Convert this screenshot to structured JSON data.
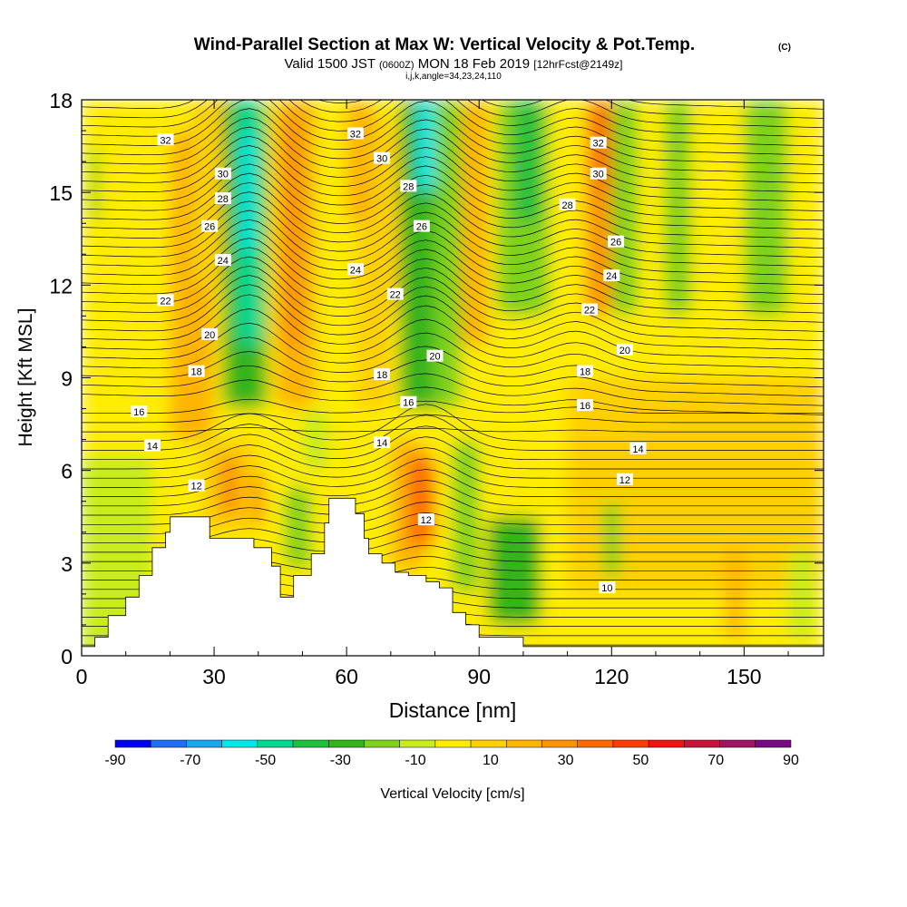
{
  "chart_data": {
    "type": "heatmap",
    "title": "Wind-Parallel Section at Max W: Vertical Velocity & Pot.Temp.",
    "title_mark": "(C)",
    "subtitle_parts": [
      "Valid 1500 JST ",
      "(0600Z)",
      " MON 18 Feb 2019 ",
      "[12hrFcst@2149z]"
    ],
    "subtitle2": "i,j,k,angle=34,23,24,110",
    "xlabel": "Distance [nm]",
    "ylabel": "Height [Kft MSL]",
    "xlim": [
      0,
      168
    ],
    "ylim": [
      0,
      18
    ],
    "x_ticks": [
      0,
      30,
      60,
      90,
      120,
      150
    ],
    "y_ticks": [
      0,
      3,
      6,
      9,
      12,
      15,
      18
    ],
    "colorbar": {
      "label": "Vertical Velocity [cm/s]",
      "range": [
        -90,
        90
      ],
      "tick_labels": [
        "-90",
        "-70",
        "-50",
        "-30",
        "-10",
        "10",
        "30",
        "50",
        "70",
        "90"
      ],
      "colors": [
        "#0000f0",
        "#1e6ff5",
        "#1aa6ef",
        "#00e8e8",
        "#00d890",
        "#1cc03c",
        "#34b41c",
        "#7fd21e",
        "#c8ec1e",
        "#ffec00",
        "#ffd000",
        "#ffb400",
        "#ff9400",
        "#ff6a00",
        "#ff3c00",
        "#f01414",
        "#c8143c",
        "#a01464",
        "#780a82"
      ]
    },
    "terrain": [
      [
        0,
        0.3
      ],
      [
        3,
        0.3
      ],
      [
        3,
        0.6
      ],
      [
        6,
        0.6
      ],
      [
        6,
        1.3
      ],
      [
        10,
        1.3
      ],
      [
        10,
        1.9
      ],
      [
        13,
        1.9
      ],
      [
        13,
        2.6
      ],
      [
        16,
        2.6
      ],
      [
        16,
        3.5
      ],
      [
        19,
        3.5
      ],
      [
        19,
        4.0
      ],
      [
        20,
        4.0
      ],
      [
        20,
        4.5
      ],
      [
        29,
        4.5
      ],
      [
        29,
        3.8
      ],
      [
        39,
        3.8
      ],
      [
        39,
        3.5
      ],
      [
        43,
        3.5
      ],
      [
        43,
        2.9
      ],
      [
        45,
        2.9
      ],
      [
        45,
        1.9
      ],
      [
        48,
        1.9
      ],
      [
        48,
        2.6
      ],
      [
        52,
        2.6
      ],
      [
        52,
        3.3
      ],
      [
        55,
        3.3
      ],
      [
        55,
        4.3
      ],
      [
        56,
        4.3
      ],
      [
        56,
        5.1
      ],
      [
        62,
        5.1
      ],
      [
        62,
        4.6
      ],
      [
        64,
        4.6
      ],
      [
        64,
        3.8
      ],
      [
        65,
        3.8
      ],
      [
        65,
        3.3
      ],
      [
        68,
        3.3
      ],
      [
        68,
        3.0
      ],
      [
        71,
        3.0
      ],
      [
        71,
        2.7
      ],
      [
        74,
        2.7
      ],
      [
        74,
        2.6
      ],
      [
        78,
        2.6
      ],
      [
        78,
        2.4
      ],
      [
        81,
        2.4
      ],
      [
        81,
        2.2
      ],
      [
        84,
        2.2
      ],
      [
        84,
        1.4
      ],
      [
        87,
        1.4
      ],
      [
        87,
        1.0
      ],
      [
        90,
        1.0
      ],
      [
        90,
        0.6
      ],
      [
        100,
        0.6
      ],
      [
        100,
        0.3
      ],
      [
        168,
        0.3
      ]
    ],
    "velocity_cells": [
      {
        "x": [
          0,
          168
        ],
        "y": [
          0,
          18
        ],
        "v": 0
      },
      {
        "x": [
          0,
          16
        ],
        "y": [
          0,
          6.5
        ],
        "v": -6
      },
      {
        "x": [
          0,
          20
        ],
        "y": [
          6.5,
          11
        ],
        "v": 3
      },
      {
        "x": [
          2,
          4
        ],
        "y": [
          14,
          16.5
        ],
        "v": -18
      },
      {
        "x": [
          20,
          30
        ],
        "y": [
          7,
          17
        ],
        "v": 15
      },
      {
        "x": [
          25,
          38
        ],
        "y": [
          12,
          18
        ],
        "v": 10
      },
      {
        "x": [
          32,
          42
        ],
        "y": [
          8,
          18
        ],
        "v": -32
      },
      {
        "x": [
          35,
          41
        ],
        "y": [
          10,
          18
        ],
        "v": -45
      },
      {
        "x": [
          36,
          39
        ],
        "y": [
          13,
          17
        ],
        "v": -60
      },
      {
        "x": [
          44,
          53
        ],
        "y": [
          8,
          18
        ],
        "v": 18
      },
      {
        "x": [
          45,
          50
        ],
        "y": [
          10,
          17.5
        ],
        "v": 28
      },
      {
        "x": [
          27,
          40
        ],
        "y": [
          4,
          7
        ],
        "v": 14
      },
      {
        "x": [
          39,
          41
        ],
        "y": [
          4.2,
          6
        ],
        "v": 36
      },
      {
        "x": [
          31,
          36
        ],
        "y": [
          4.5,
          6.5
        ],
        "v": 24
      },
      {
        "x": [
          46,
          52
        ],
        "y": [
          2.8,
          5.5
        ],
        "v": -22
      },
      {
        "x": [
          50,
          56
        ],
        "y": [
          6,
          8
        ],
        "v": -12
      },
      {
        "x": [
          62,
          70
        ],
        "y": [
          8,
          17.5
        ],
        "v": 10
      },
      {
        "x": [
          60,
          66
        ],
        "y": [
          14,
          18
        ],
        "v": 22
      },
      {
        "x": [
          66,
          72
        ],
        "y": [
          11,
          17
        ],
        "v": 14
      },
      {
        "x": [
          72,
          82
        ],
        "y": [
          8,
          18
        ],
        "v": -30
      },
      {
        "x": [
          76,
          80
        ],
        "y": [
          15,
          18
        ],
        "v": -55
      },
      {
        "x": [
          80,
          86
        ],
        "y": [
          8,
          18
        ],
        "v": -15
      },
      {
        "x": [
          86,
          92
        ],
        "y": [
          10,
          18
        ],
        "v": 15
      },
      {
        "x": [
          94,
          106
        ],
        "y": [
          11,
          18
        ],
        "v": -20
      },
      {
        "x": [
          98,
          104
        ],
        "y": [
          14,
          18
        ],
        "v": -34
      },
      {
        "x": [
          114,
          120
        ],
        "y": [
          11,
          18
        ],
        "v": 25
      },
      {
        "x": [
          116,
          120
        ],
        "y": [
          15,
          18
        ],
        "v": 42
      },
      {
        "x": [
          120,
          126
        ],
        "y": [
          11,
          18
        ],
        "v": -15
      },
      {
        "x": [
          132,
          138
        ],
        "y": [
          11,
          18
        ],
        "v": -15
      },
      {
        "x": [
          150,
          160
        ],
        "y": [
          11,
          18
        ],
        "v": -15
      },
      {
        "x": [
          110,
          168
        ],
        "y": [
          2,
          9
        ],
        "v": 6
      },
      {
        "x": [
          70,
          78
        ],
        "y": [
          2.8,
          7
        ],
        "v": 22
      },
      {
        "x": [
          74,
          80
        ],
        "y": [
          3.5,
          6.5
        ],
        "v": 38
      },
      {
        "x": [
          84,
          90
        ],
        "y": [
          2,
          7
        ],
        "v": -18
      },
      {
        "x": [
          92,
          104
        ],
        "y": [
          1,
          4.5
        ],
        "v": -25
      },
      {
        "x": [
          118,
          122
        ],
        "y": [
          2.5,
          5
        ],
        "v": -20
      },
      {
        "x": [
          146,
          150
        ],
        "y": [
          0.5,
          3.5
        ],
        "v": 15
      },
      {
        "x": [
          160,
          166
        ],
        "y": [
          0.5,
          3.5
        ],
        "v": -10
      }
    ],
    "theta_labels": [
      {
        "text": "32",
        "x": 19,
        "y": 16.7
      },
      {
        "text": "30",
        "x": 32,
        "y": 15.6
      },
      {
        "text": "28",
        "x": 32,
        "y": 14.8
      },
      {
        "text": "26",
        "x": 29,
        "y": 13.9
      },
      {
        "text": "24",
        "x": 32,
        "y": 12.8
      },
      {
        "text": "22",
        "x": 19,
        "y": 11.5
      },
      {
        "text": "20",
        "x": 29,
        "y": 10.4
      },
      {
        "text": "18",
        "x": 26,
        "y": 9.2
      },
      {
        "text": "16",
        "x": 13,
        "y": 7.9
      },
      {
        "text": "14",
        "x": 16,
        "y": 6.8
      },
      {
        "text": "12",
        "x": 26,
        "y": 5.5
      },
      {
        "text": "32",
        "x": 62,
        "y": 16.9
      },
      {
        "text": "30",
        "x": 68,
        "y": 16.1
      },
      {
        "text": "28",
        "x": 74,
        "y": 15.2
      },
      {
        "text": "26",
        "x": 77,
        "y": 13.9
      },
      {
        "text": "24",
        "x": 62,
        "y": 12.5
      },
      {
        "text": "22",
        "x": 71,
        "y": 11.7
      },
      {
        "text": "20",
        "x": 80,
        "y": 9.7
      },
      {
        "text": "18",
        "x": 68,
        "y": 9.1
      },
      {
        "text": "16",
        "x": 74,
        "y": 8.2
      },
      {
        "text": "14",
        "x": 68,
        "y": 6.9
      },
      {
        "text": "12",
        "x": 78,
        "y": 4.4
      },
      {
        "text": "32",
        "x": 117,
        "y": 16.6
      },
      {
        "text": "30",
        "x": 117,
        "y": 15.6
      },
      {
        "text": "28",
        "x": 110,
        "y": 14.6
      },
      {
        "text": "26",
        "x": 121,
        "y": 13.4
      },
      {
        "text": "24",
        "x": 120,
        "y": 12.3
      },
      {
        "text": "22",
        "x": 115,
        "y": 11.2
      },
      {
        "text": "20",
        "x": 123,
        "y": 9.9
      },
      {
        "text": "18",
        "x": 114,
        "y": 9.2
      },
      {
        "text": "16",
        "x": 114,
        "y": 8.1
      },
      {
        "text": "14",
        "x": 126,
        "y": 6.7
      },
      {
        "text": "12",
        "x": 123,
        "y": 5.7
      },
      {
        "text": "10",
        "x": 119,
        "y": 2.2
      }
    ]
  }
}
